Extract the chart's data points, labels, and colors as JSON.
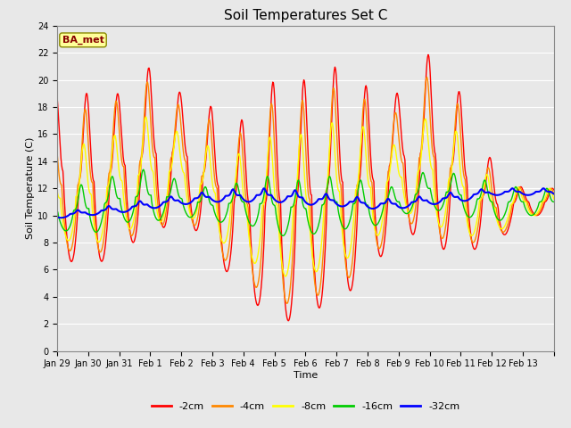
{
  "title": "Soil Temperatures Set C",
  "xlabel": "Time",
  "ylabel": "Soil Temperature (C)",
  "ylim": [
    0,
    24
  ],
  "yticks": [
    0,
    2,
    4,
    6,
    8,
    10,
    12,
    14,
    16,
    18,
    20,
    22,
    24
  ],
  "x_labels": [
    "Jan 29",
    "Jan 30",
    "Jan 31",
    "Feb 1",
    "Feb 2",
    "Feb 3",
    "Feb 4",
    "Feb 5",
    "Feb 6",
    "Feb 7",
    "Feb 8",
    "Feb 9",
    "Feb 10",
    "Feb 11",
    "Feb 12",
    "Feb 13"
  ],
  "series_labels": [
    "-2cm",
    "-4cm",
    "-8cm",
    "-16cm",
    "-32cm"
  ],
  "series_colors": [
    "#ff0000",
    "#ff8800",
    "#ffff00",
    "#00cc00",
    "#0000ff"
  ],
  "series_linewidths": [
    1.0,
    1.0,
    1.0,
    1.0,
    1.5
  ],
  "background_color": "#e8e8e8",
  "plot_background": "#e8e8e8",
  "grid_color": "#ffffff",
  "annotation_text": "BA_met",
  "annotation_color": "#880000",
  "annotation_bg": "#ffff99",
  "title_fontsize": 11,
  "label_fontsize": 8,
  "tick_fontsize": 7
}
